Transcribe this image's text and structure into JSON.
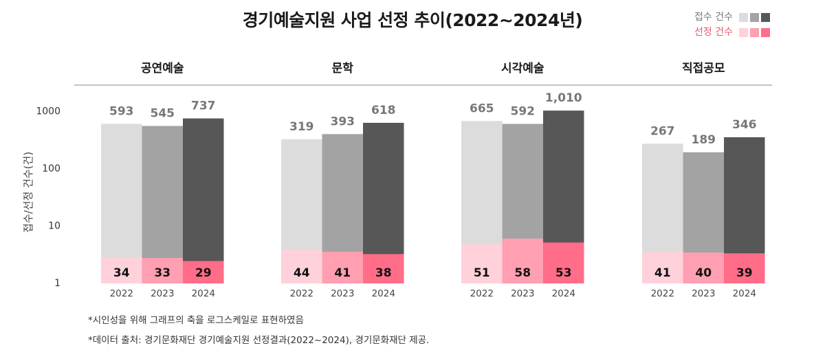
{
  "chart_data": {
    "type": "bar",
    "scale": "log",
    "title": "경기예술지원 사업 선정 추이(2022~2024년)",
    "ylabel": "접수/선정 건수(건)",
    "ylim": [
      1,
      1000
    ],
    "y_ticks": [
      "1",
      "10",
      "100",
      "1000"
    ],
    "legend": [
      {
        "label": "접수 건수",
        "colors": [
          "#dcdcdc",
          "#a3a3a3",
          "#575757"
        ]
      },
      {
        "label": "선정 건수",
        "colors": [
          "#ffd1da",
          "#ff9fb1",
          "#ff6d88"
        ]
      }
    ],
    "years": [
      "2022",
      "2023",
      "2024"
    ],
    "groups": [
      {
        "name": "공연예술",
        "applications": [
          593,
          545,
          737
        ],
        "app_labels": [
          "593",
          "545",
          "737"
        ],
        "selected": [
          34,
          33,
          29
        ],
        "sel_labels": [
          "34",
          "33",
          "29"
        ]
      },
      {
        "name": "문학",
        "applications": [
          319,
          393,
          618
        ],
        "app_labels": [
          "319",
          "393",
          "618"
        ],
        "selected": [
          44,
          41,
          38
        ],
        "sel_labels": [
          "44",
          "41",
          "38"
        ]
      },
      {
        "name": "시각예술",
        "applications": [
          665,
          592,
          1010
        ],
        "app_labels": [
          "665",
          "592",
          "1,010"
        ],
        "selected": [
          51,
          58,
          53
        ],
        "sel_labels": [
          "51",
          "58",
          "53"
        ]
      },
      {
        "name": "직접공모",
        "applications": [
          267,
          189,
          346
        ],
        "app_labels": [
          "267",
          "189",
          "346"
        ],
        "selected": [
          41,
          40,
          39
        ],
        "sel_labels": [
          "41",
          "40",
          "39"
        ]
      }
    ]
  },
  "notes": {
    "note1": "*시인성을 위해 그래프의 축을 로그스케일로 표현하였음",
    "note2": "*데이터 출처: 경기문화재단 경기예술지원 선정결과(2022~2024), 경기문화재단 제공."
  }
}
